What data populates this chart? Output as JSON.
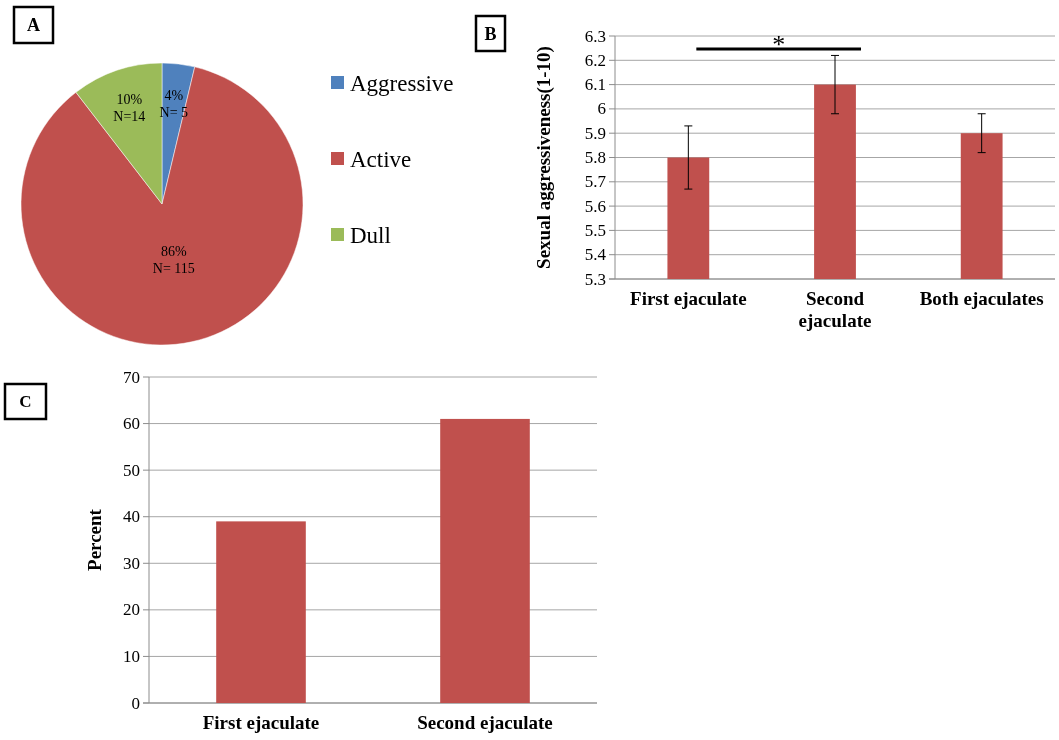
{
  "chart_data": [
    {
      "type": "pie",
      "title": "A",
      "categories": [
        "Aggressive",
        "Active",
        "Dull"
      ],
      "values": [
        5,
        115,
        14
      ],
      "colors": [
        "#4f81bd",
        "#c0504d",
        "#9bbb59"
      ],
      "value_labels": [
        "4%\nN= 5",
        "86%\nN= 115",
        "10%\nN=14"
      ],
      "legend": "right"
    },
    {
      "type": "bar",
      "title": "B",
      "ylabel": "Sexual aggressiveness(1-10)",
      "categories": [
        "First ejaculate",
        "Second ejaculate",
        "Both ejaculates"
      ],
      "values": [
        5.8,
        6.1,
        5.9
      ],
      "errors": [
        0.13,
        0.12,
        0.08
      ],
      "color": "#c0504d",
      "ylim": [
        5.3,
        6.3
      ],
      "yticks": [
        5.3,
        5.4,
        5.5,
        5.6,
        5.7,
        5.8,
        5.9,
        6,
        6.1,
        6.2,
        6.3
      ],
      "grid": "y",
      "annotations": [
        "*"
      ]
    },
    {
      "type": "bar",
      "title": "C",
      "ylabel": "Percent",
      "categories": [
        "First ejaculate",
        "Second ejaculate"
      ],
      "values": [
        39,
        61
      ],
      "color": "#c0504d",
      "ylim": [
        0,
        70
      ],
      "yticks": [
        0,
        10,
        20,
        30,
        40,
        50,
        60,
        70
      ],
      "grid": "y"
    }
  ]
}
